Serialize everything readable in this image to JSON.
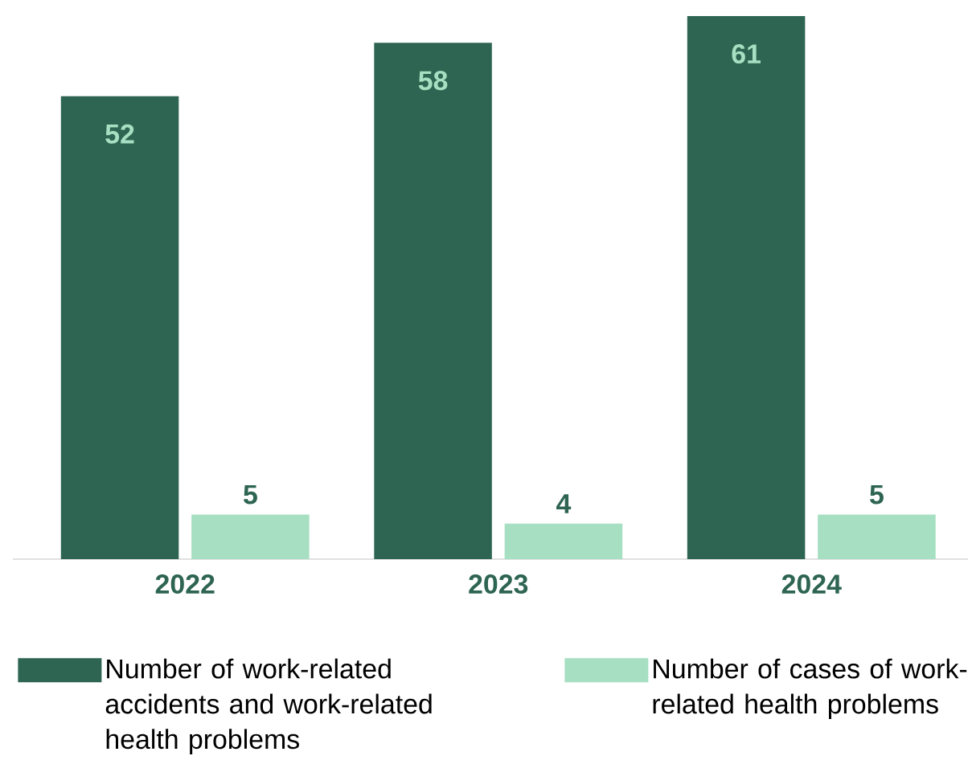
{
  "chart_data": {
    "type": "bar",
    "categories": [
      "2022",
      "2023",
      "2024"
    ],
    "series": [
      {
        "name": "Number of work-related accidents and work-related health problems",
        "color": "#2e6552",
        "values": [
          52,
          58,
          61
        ]
      },
      {
        "name": "Number of cases of work-related health problems",
        "color": "#a6dfc1",
        "values": [
          5,
          4,
          5
        ]
      }
    ],
    "data_labels": true,
    "legend": "bottom"
  }
}
